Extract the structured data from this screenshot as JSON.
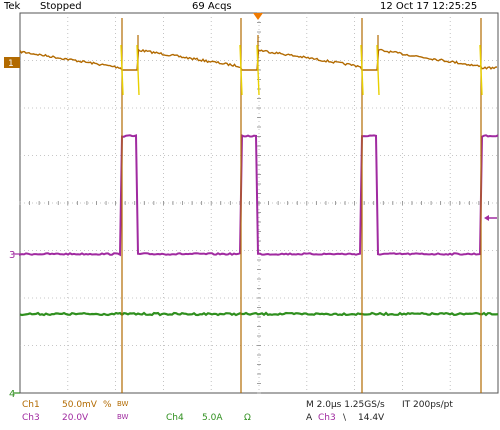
{
  "header": {
    "brand": "Tek",
    "run_state": "Stopped",
    "acquisitions": "69 Acqs",
    "datetime": "12 Oct 17 12:25:25"
  },
  "markers": {
    "ch1": "1",
    "ch3": "3",
    "ch4": "4"
  },
  "readouts": {
    "ch1_label": "Ch1",
    "ch1_scale": "50.0mV",
    "ch1_coupling": "%",
    "ch1_bw": "BW",
    "ch3_label": "Ch3",
    "ch3_scale": "20.0V",
    "ch3_bw": "BW",
    "ch4_label": "Ch4",
    "ch4_scale": "5.0A",
    "ch4_unit": "Ω",
    "timebase": "M 2.0µs 1.25GS/s",
    "record": "IT 200ps/pt",
    "trigger_mode": "A",
    "trigger_source": "Ch3",
    "trigger_slope": "\\",
    "trigger_level": "14.4V"
  },
  "colors": {
    "ch1": "#b26a00",
    "ch1_glitch": "#e8d000",
    "ch3": "#a02aa0",
    "ch4": "#2f8f1e",
    "grid": "#9a9a9a"
  }
}
